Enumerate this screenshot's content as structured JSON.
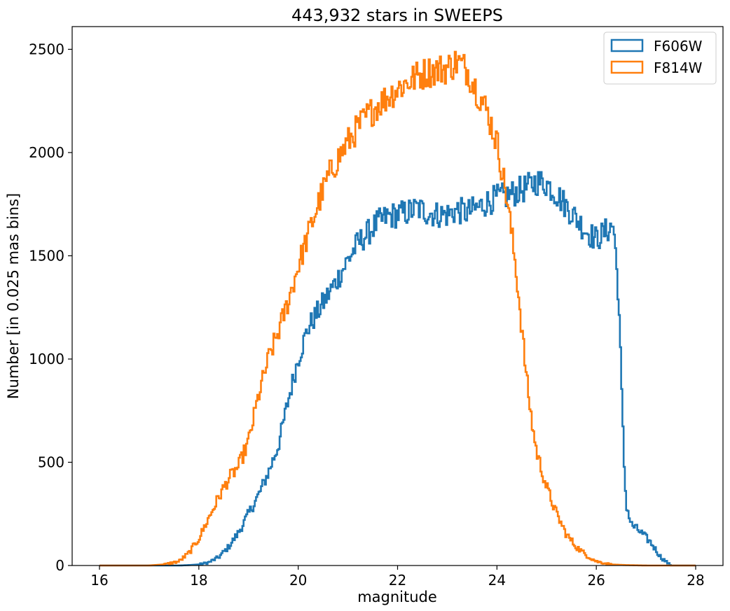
{
  "chart_data": {
    "type": "histogram-step",
    "title": "443,932 stars in SWEEPS",
    "xlabel": "magnitude",
    "ylabel": "Number [in 0.025 mas bins]",
    "xlim": [
      15.45,
      28.55
    ],
    "ylim": [
      0,
      2610
    ],
    "xticks": [
      16,
      18,
      20,
      22,
      24,
      26,
      28
    ],
    "xtick_labels": [
      "16",
      "18",
      "20",
      "22",
      "24",
      "26",
      "28"
    ],
    "yticks": [
      0,
      500,
      1000,
      1500,
      2000,
      2500
    ],
    "ytick_labels": [
      "0",
      "500",
      "1000",
      "1500",
      "2000",
      "2500"
    ],
    "legend_position": "top-right",
    "series": [
      {
        "name": "F606W",
        "color": "#1f77b4",
        "x": [
          16.0,
          17.6,
          17.8,
          18.0,
          18.2,
          18.4,
          18.6,
          18.8,
          19.0,
          19.2,
          19.4,
          19.6,
          19.8,
          20.0,
          20.2,
          20.4,
          20.6,
          20.8,
          21.0,
          21.2,
          21.4,
          21.6,
          21.8,
          22.0,
          22.2,
          22.4,
          22.6,
          22.8,
          23.0,
          23.2,
          23.4,
          23.6,
          23.8,
          24.0,
          24.2,
          24.4,
          24.6,
          24.8,
          25.0,
          25.2,
          25.4,
          25.6,
          25.8,
          26.0,
          26.2,
          26.35,
          26.45,
          26.55,
          26.6,
          26.7,
          26.9,
          27.1,
          27.3,
          27.5,
          28.0
        ],
        "y": [
          0,
          0,
          2,
          5,
          15,
          40,
          90,
          160,
          250,
          340,
          450,
          580,
          800,
          1000,
          1150,
          1230,
          1310,
          1390,
          1480,
          1560,
          1610,
          1660,
          1690,
          1700,
          1710,
          1730,
          1710,
          1700,
          1700,
          1720,
          1710,
          1730,
          1760,
          1780,
          1790,
          1810,
          1830,
          1860,
          1850,
          1800,
          1740,
          1680,
          1620,
          1580,
          1620,
          1650,
          1300,
          550,
          300,
          200,
          160,
          110,
          40,
          0,
          0
        ]
      },
      {
        "name": "F814W",
        "color": "#ff7f0e",
        "x": [
          16.0,
          17.0,
          17.3,
          17.6,
          17.8,
          18.0,
          18.2,
          18.4,
          18.6,
          18.8,
          19.0,
          19.2,
          19.4,
          19.6,
          19.8,
          20.0,
          20.2,
          20.4,
          20.6,
          20.8,
          21.0,
          21.2,
          21.4,
          21.6,
          21.8,
          22.0,
          22.2,
          22.4,
          22.6,
          22.8,
          23.0,
          23.2,
          23.4,
          23.6,
          23.8,
          24.0,
          24.1,
          24.2,
          24.3,
          24.4,
          24.5,
          24.6,
          24.7,
          24.8,
          25.0,
          25.2,
          25.4,
          25.6,
          25.8,
          26.0,
          26.3,
          26.6,
          27.0,
          28.0
        ],
        "y": [
          0,
          0,
          5,
          20,
          60,
          130,
          230,
          330,
          420,
          480,
          600,
          820,
          1000,
          1130,
          1280,
          1450,
          1600,
          1750,
          1880,
          1970,
          2050,
          2120,
          2180,
          2230,
          2270,
          2310,
          2340,
          2370,
          2390,
          2400,
          2410,
          2440,
          2400,
          2300,
          2200,
          2050,
          1920,
          1780,
          1600,
          1400,
          1150,
          900,
          700,
          550,
          380,
          250,
          150,
          90,
          50,
          20,
          5,
          2,
          0,
          0
        ]
      }
    ]
  }
}
